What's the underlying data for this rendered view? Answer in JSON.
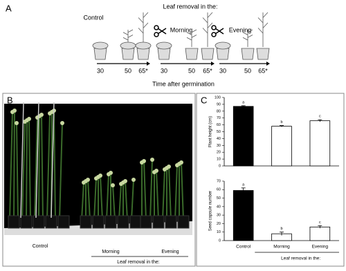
{
  "panel_labels": [
    "A",
    "B",
    "C"
  ],
  "panel_a": {
    "header": "Leaf removal in the:",
    "groups": [
      "Control",
      "Morning",
      "Evening"
    ],
    "timepoints": [
      "30",
      "50",
      "65*"
    ],
    "axis_label": "Time after germination"
  },
  "panel_b": {
    "labels": [
      "Control",
      "Morning",
      "Evening"
    ],
    "group_label": "Leaf removal in the:"
  },
  "chart_data": [
    {
      "type": "bar",
      "y_label": "Plant height (cm)",
      "values": [
        87,
        58,
        66
      ],
      "errors": [
        1,
        1,
        1.5
      ],
      "annotations": [
        "a",
        "b",
        "c"
      ],
      "colors": [
        "#000000",
        "#ffffff",
        "#ffffff"
      ],
      "ylim": [
        0,
        100
      ],
      "yticks": [
        0,
        10,
        20,
        30,
        40,
        50,
        60,
        70,
        80,
        90,
        100
      ]
    },
    {
      "type": "bar",
      "y_label": "Seed capsule number",
      "categories": [
        "Control",
        "Morning",
        "Evening"
      ],
      "values": [
        59,
        8,
        16
      ],
      "errors": [
        3,
        2,
        1.5
      ],
      "annotations": [
        "a",
        "b",
        "c"
      ],
      "colors": [
        "#000000",
        "#ffffff",
        "#ffffff"
      ],
      "group_label": "Leaf removal in the:",
      "ylim": [
        0,
        70
      ],
      "yticks": [
        0,
        10,
        20,
        30,
        40,
        50,
        60,
        70
      ]
    }
  ]
}
